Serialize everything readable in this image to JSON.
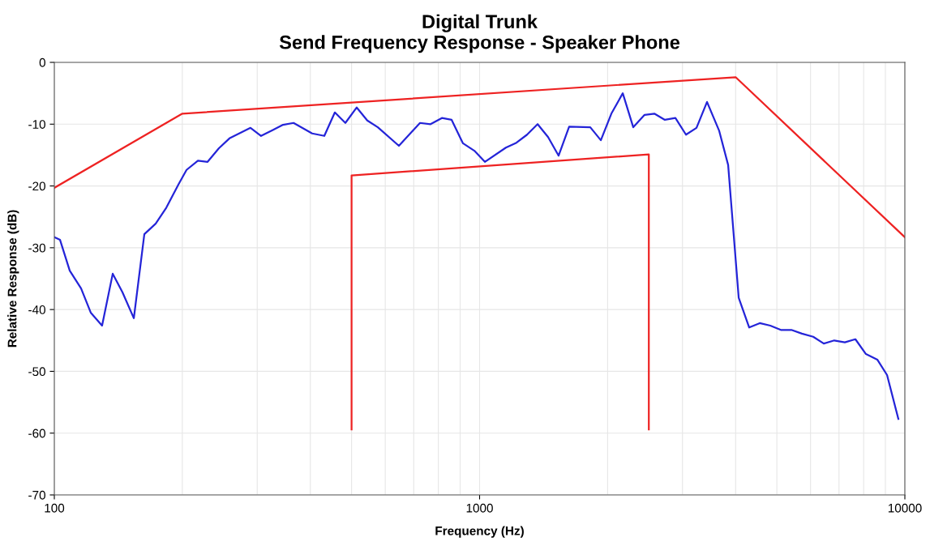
{
  "chart_data": {
    "type": "line",
    "title": "Digital Trunk\nSend Frequency Response - Speaker Phone",
    "xlabel": "Frequency (Hz)",
    "ylabel": "Relative Response (dB)",
    "log": "x",
    "grid": true,
    "marker": "none",
    "line_style": "solid",
    "xlim": [
      100,
      10000
    ],
    "xticks": [
      100,
      1000,
      10000
    ],
    "ylim": [
      -70,
      0
    ],
    "yticks": [
      -70,
      -60,
      -50,
      -40,
      -30,
      -20,
      -10,
      0
    ],
    "series": [
      {
        "color": "#2424d8",
        "x": [
          100,
          103.1,
          108.7,
          115.6,
          121.8,
          129.5,
          137.2,
          144.6,
          153.8,
          162.8,
          173.1,
          183.4,
          195.7,
          204.6,
          217.6,
          229.3,
          243.8,
          258.1,
          289.3,
          306.3,
          327.2,
          345.0,
          365.2,
          403.9,
          431.4,
          456.7,
          483.5,
          514.1,
          544.4,
          576.4,
          646.0,
          724.3,
          766.8,
          815.3,
          859.5,
          913.9,
          971.9,
          1029,
          1153,
          1221,
          1293,
          1369,
          1449,
          1534,
          1624,
          1821,
          1928,
          2041,
          2171,
          2298,
          2443,
          2576,
          2727,
          2887,
          3057,
          3236,
          3426,
          3660,
          3841,
          4067,
          4305,
          4558,
          4826,
          5109,
          5409,
          5727,
          6088,
          6446,
          6824,
          7225,
          7650,
          8099,
          8613,
          9081,
          9654
        ],
        "values": [
          -28.3,
          -28.7,
          -33.7,
          -36.6,
          -40.5,
          -42.6,
          -34.2,
          -37.2,
          -41.4,
          -27.8,
          -26.1,
          -23.5,
          -19.8,
          -17.4,
          -15.9,
          -16.1,
          -13.9,
          -12.3,
          -10.6,
          -11.9,
          -10.9,
          -10.1,
          -9.8,
          -11.5,
          -11.9,
          -8.1,
          -9.8,
          -7.3,
          -9.4,
          -10.5,
          -13.5,
          -9.8,
          -10.0,
          -9.0,
          -9.3,
          -13.1,
          -14.3,
          -16.1,
          -13.8,
          -13.0,
          -11.7,
          -10.0,
          -12.1,
          -15.1,
          -10.4,
          -10.5,
          -12.6,
          -8.3,
          -5.0,
          -10.5,
          -8.5,
          -8.3,
          -9.3,
          -9.0,
          -11.7,
          -10.6,
          -6.4,
          -11.1,
          -16.6,
          -38.1,
          -42.9,
          -42.2,
          -42.6,
          -43.3,
          -43.3,
          -43.9,
          -44.4,
          -45.5,
          -45.0,
          -45.3,
          -44.8,
          -47.2,
          -48.1,
          -50.6,
          -57.7
        ]
      },
      {
        "color": "#ee2222",
        "x": [
          100,
          200,
          4000,
          10000
        ],
        "values": [
          -20.3,
          -8.3,
          -2.4,
          -28.3
        ]
      },
      {
        "color": "#ee2222",
        "x": [
          500,
          500,
          2500,
          2500
        ],
        "values": [
          -59.4,
          -18.3,
          -14.9,
          -59.4
        ]
      }
    ]
  }
}
